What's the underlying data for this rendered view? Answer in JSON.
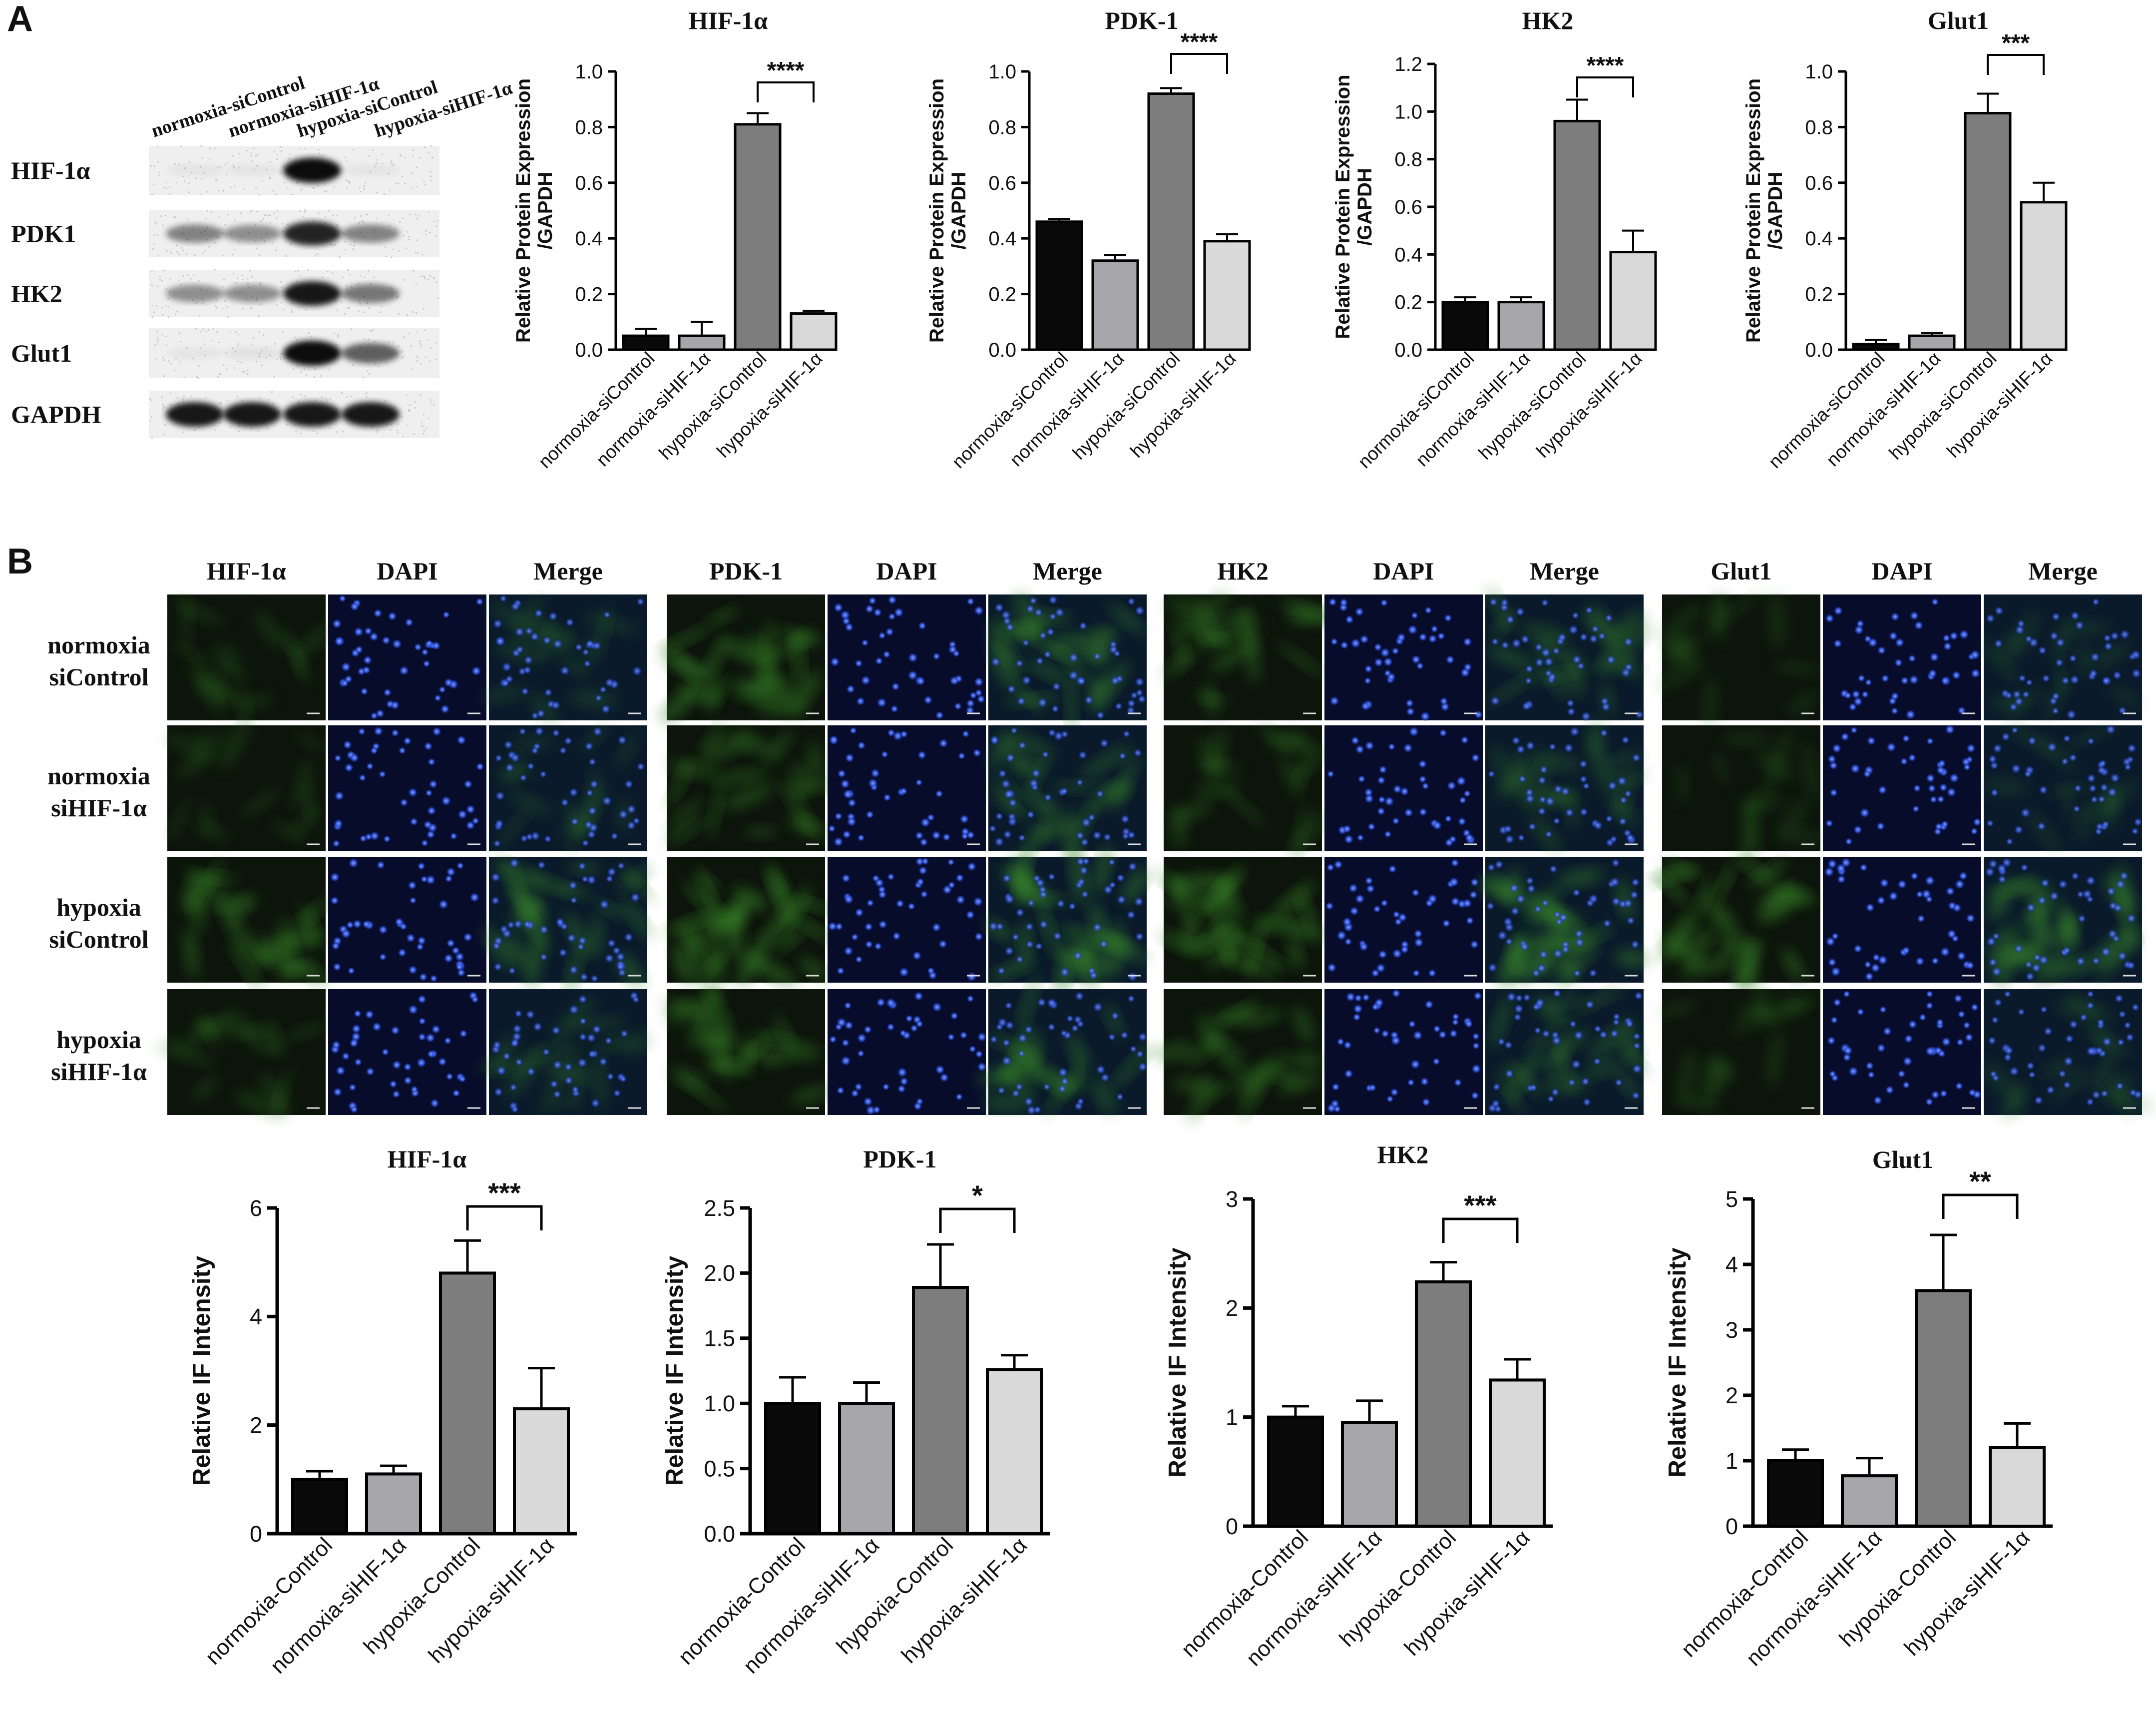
{
  "panels": [
    {
      "label": "A"
    },
    {
      "label": "B"
    }
  ],
  "western_blot": {
    "lanes": [
      "normoxia-siControl",
      "normoxia-siHIF-1α",
      "hypoxia-siControl",
      "hypoxia-siHIF-1α"
    ],
    "proteins": [
      "HIF-1α",
      "PDK1",
      "HK2",
      "Glut1",
      "GAPDH"
    ],
    "band_intensity": [
      [
        0.02,
        0.02,
        0.95,
        0.03
      ],
      [
        0.45,
        0.4,
        0.85,
        0.45
      ],
      [
        0.4,
        0.4,
        0.9,
        0.5
      ],
      [
        0.02,
        0.05,
        0.95,
        0.6
      ],
      [
        0.9,
        0.9,
        0.9,
        0.9
      ]
    ]
  },
  "if_grid": {
    "groups": [
      {
        "marker": "HIF-1α",
        "dapi": "DAPI",
        "merge": "Merge",
        "green": [
          0.12,
          0.1,
          0.32,
          0.14
        ]
      },
      {
        "marker": "PDK-1",
        "dapi": "DAPI",
        "merge": "Merge",
        "green": [
          0.38,
          0.28,
          0.42,
          0.3
        ]
      },
      {
        "marker": "HK2",
        "dapi": "DAPI",
        "merge": "Merge",
        "green": [
          0.26,
          0.18,
          0.4,
          0.28
        ]
      },
      {
        "marker": "Glut1",
        "dapi": "DAPI",
        "merge": "Merge",
        "green": [
          0.08,
          0.06,
          0.38,
          0.1
        ]
      }
    ],
    "rows": [
      {
        "line1": "normoxia",
        "line2": "siControl"
      },
      {
        "line1": "normoxia",
        "line2": "siHIF-1α"
      },
      {
        "line1": "hypoxia",
        "line2": "siControl"
      },
      {
        "line1": "hypoxia",
        "line2": "siHIF-1α"
      }
    ]
  },
  "colors": {
    "bar_fills": [
      "#0a0a0a",
      "#a6a6ab",
      "#7d7d7d",
      "#d9d9d9"
    ],
    "dapi_blue": "#1b3fc4",
    "marker_green": "#3a8a2a"
  },
  "chart_data": [
    {
      "type": "bar",
      "title": "HIF-1α",
      "ylabel": "Relative Protein Expression\n/GAPDH",
      "categories": [
        "normoxia-siControl",
        "normoxia-siHIF-1α",
        "hypoxia-siControl",
        "hypoxia-siHIF-1α"
      ],
      "values": [
        0.05,
        0.05,
        0.81,
        0.13
      ],
      "errors": [
        0.025,
        0.05,
        0.04,
        0.01
      ],
      "ylim": [
        0,
        1.0
      ],
      "ticks": [
        "0.0",
        "0.2",
        "0.4",
        "0.6",
        "0.8",
        "1.0"
      ],
      "significance": {
        "between": [
          2,
          3
        ],
        "label": "****"
      }
    },
    {
      "type": "bar",
      "title": "PDK-1",
      "ylabel": "Relative Protein Expression\n/GAPDH",
      "categories": [
        "normoxia-siControl",
        "normoxia-siHIF-1α",
        "hypoxia-siControl",
        "hypoxia-siHIF-1α"
      ],
      "values": [
        0.46,
        0.32,
        0.92,
        0.39
      ],
      "errors": [
        0.01,
        0.02,
        0.02,
        0.025
      ],
      "ylim": [
        0,
        1.0
      ],
      "ticks": [
        "0.0",
        "0.2",
        "0.4",
        "0.6",
        "0.8",
        "1.0"
      ],
      "significance": {
        "between": [
          2,
          3
        ],
        "label": "****"
      }
    },
    {
      "type": "bar",
      "title": "HK2",
      "ylabel": "Relative Protein Expression\n/GAPDH",
      "categories": [
        "normoxia-siControl",
        "normoxia-siHIF-1α",
        "hypoxia-siControl",
        "hypoxia-siHIF-1α"
      ],
      "values": [
        0.2,
        0.2,
        0.96,
        0.41
      ],
      "errors": [
        0.02,
        0.02,
        0.09,
        0.09
      ],
      "ylim": [
        0,
        1.2
      ],
      "ticks": [
        "0.0",
        "0.2",
        "0.4",
        "0.6",
        "0.8",
        "1.0",
        "1.2"
      ],
      "significance": {
        "between": [
          2,
          3
        ],
        "label": "****"
      }
    },
    {
      "type": "bar",
      "title": "Glut1",
      "ylabel": "Relative Protein Expression\n/GAPDH",
      "categories": [
        "normoxia-siControl",
        "normoxia-siHIF-1α",
        "hypoxia-siControl",
        "hypoxia-siHIF-1α"
      ],
      "values": [
        0.02,
        0.05,
        0.85,
        0.53
      ],
      "errors": [
        0.015,
        0.01,
        0.07,
        0.07
      ],
      "ylim": [
        0,
        1.0
      ],
      "ticks": [
        "0.0",
        "0.2",
        "0.4",
        "0.6",
        "0.8",
        "1.0"
      ],
      "significance": {
        "between": [
          2,
          3
        ],
        "label": "***"
      }
    },
    {
      "type": "bar",
      "title": "HIF-1α",
      "ylabel": "Relative IF Intensity",
      "categories": [
        "normoxia-Control",
        "normoxia-siHIF-1α",
        "hypoxia-Control",
        "hypoxia-siHIF-1α"
      ],
      "values": [
        1.0,
        1.1,
        4.8,
        2.3
      ],
      "errors": [
        0.15,
        0.15,
        0.6,
        0.75
      ],
      "ylim": [
        0,
        6
      ],
      "ticks": [
        "0",
        "2",
        "4",
        "6"
      ],
      "significance": {
        "between": [
          2,
          3
        ],
        "label": "***"
      }
    },
    {
      "type": "bar",
      "title": "PDK-1",
      "ylabel": "Relative IF Intensity",
      "categories": [
        "normoxia-Control",
        "normoxia-siHIF-1α",
        "hypoxia-Control",
        "hypoxia-siHIF-1α"
      ],
      "values": [
        1.0,
        1.0,
        1.89,
        1.26
      ],
      "errors": [
        0.2,
        0.16,
        0.33,
        0.11
      ],
      "ylim": [
        0,
        2.5
      ],
      "ticks": [
        "0.0",
        "0.5",
        "1.0",
        "1.5",
        "2.0",
        "2.5"
      ],
      "significance": {
        "between": [
          2,
          3
        ],
        "label": "*"
      }
    },
    {
      "type": "bar",
      "title": "HK2",
      "ylabel": "Relative IF Intensity",
      "categories": [
        "normoxia-Control",
        "normoxia-siHIF-1α",
        "hypoxia-Control",
        "hypoxia-siHIF-1α"
      ],
      "values": [
        1.0,
        0.95,
        2.24,
        1.34
      ],
      "errors": [
        0.1,
        0.2,
        0.18,
        0.19
      ],
      "ylim": [
        0,
        3
      ],
      "ticks": [
        "0",
        "1",
        "2",
        "3"
      ],
      "significance": {
        "between": [
          2,
          3
        ],
        "label": "***"
      }
    },
    {
      "type": "bar",
      "title": "Glut1",
      "ylabel": "Relative IF Intensity",
      "categories": [
        "normoxia-Control",
        "normoxia-siHIF-1α",
        "hypoxia-Control",
        "hypoxia-siHIF-1α"
      ],
      "values": [
        1.0,
        0.77,
        3.6,
        1.2
      ],
      "errors": [
        0.17,
        0.27,
        0.85,
        0.37
      ],
      "ylim": [
        0,
        5
      ],
      "ticks": [
        "0",
        "1",
        "2",
        "3",
        "4",
        "5"
      ],
      "significance": {
        "between": [
          2,
          3
        ],
        "label": "**"
      }
    }
  ]
}
